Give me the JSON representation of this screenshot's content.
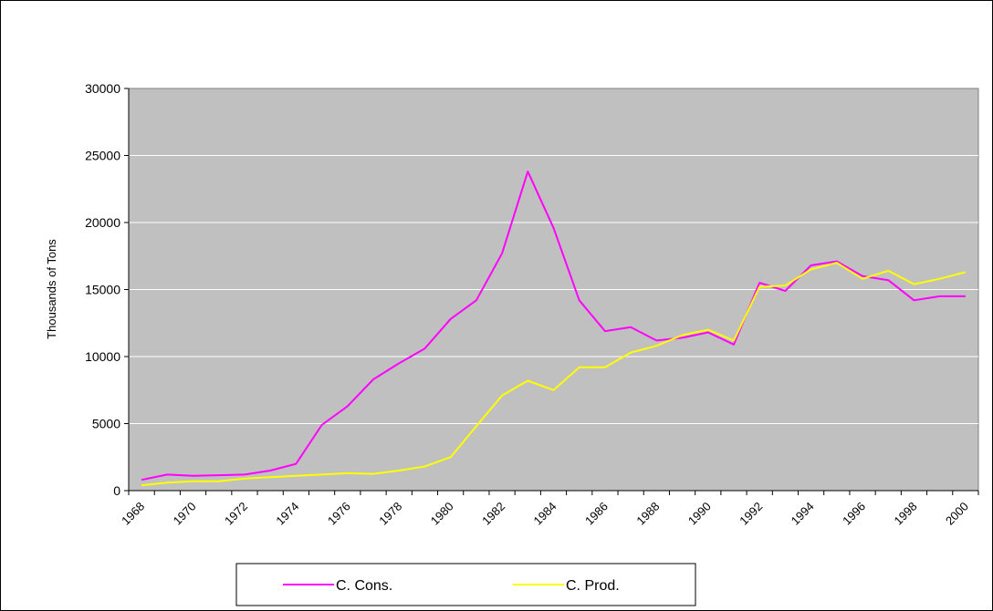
{
  "chart_data": {
    "type": "line",
    "title": "",
    "xlabel": "",
    "ylabel": "Thousands of Tons",
    "ylim": [
      0,
      30000
    ],
    "yticks": [
      0,
      5000,
      10000,
      15000,
      20000,
      25000,
      30000
    ],
    "xlim": [
      1968,
      2001
    ],
    "x": [
      1968,
      1969,
      1970,
      1971,
      1972,
      1973,
      1974,
      1975,
      1976,
      1977,
      1978,
      1979,
      1980,
      1981,
      1982,
      1983,
      1984,
      1985,
      1986,
      1987,
      1988,
      1989,
      1990,
      1991,
      1992,
      1993,
      1994,
      1995,
      1996,
      1997,
      1998,
      1999,
      2000,
      2001
    ],
    "xtick_labels": [
      "1968",
      "1970",
      "1972",
      "1974",
      "1976",
      "1978",
      "1980",
      "1982",
      "1984",
      "1986",
      "1988",
      "1990",
      "1992",
      "1994",
      "1996",
      "1998",
      "2000"
    ],
    "grid": true,
    "legend_position": "bottom",
    "plot_background": "#C0C0C0",
    "series": [
      {
        "name": "C. Cons.",
        "color": "#FF00FF",
        "values": [
          800,
          1200,
          1100,
          1150,
          1200,
          1500,
          2000,
          4900,
          6300,
          8300,
          9500,
          10600,
          12800,
          14200,
          17700,
          23800,
          19600,
          14200,
          11900,
          12200,
          11200,
          11400,
          11800,
          10900,
          15500,
          14900,
          16800,
          17100,
          16000,
          15700,
          14200,
          14500,
          14500,
          null
        ]
      },
      {
        "name": "C. Prod.",
        "color": "#FFFF00",
        "values": [
          400,
          600,
          700,
          700,
          900,
          1000,
          1100,
          1200,
          1300,
          1250,
          1500,
          1800,
          2500,
          4800,
          7100,
          8200,
          7500,
          9200,
          9200,
          10300,
          10800,
          11600,
          12000,
          11200,
          15200,
          15300,
          16500,
          17000,
          15800,
          16400,
          15400,
          15800,
          16300,
          null
        ]
      }
    ]
  }
}
